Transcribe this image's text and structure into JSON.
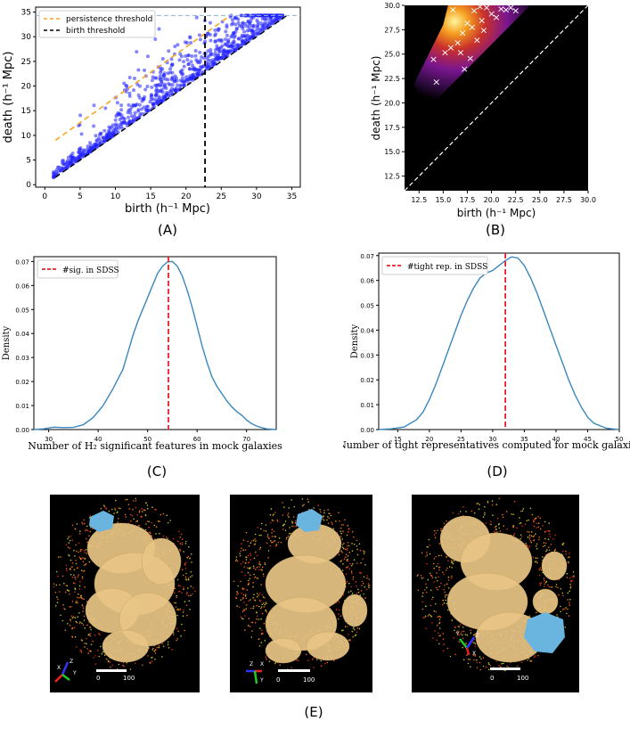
{
  "chart_data": [
    {
      "id": "A",
      "type": "scatter",
      "title": "",
      "xlabel": "birth (h⁻¹ Mpc)",
      "ylabel": "death (h⁻¹ Mpc)",
      "xlim": [
        0,
        35
      ],
      "ylim": [
        0,
        35
      ],
      "xticks": [
        "0",
        "5",
        "10",
        "15",
        "20",
        "25",
        "30",
        "35"
      ],
      "yticks": [
        "0",
        "5",
        "10",
        "15",
        "20",
        "25",
        "30",
        "35"
      ],
      "legend": [
        "persistence threshold",
        "birth threshold"
      ],
      "persistence_line": {
        "from": [
          1.5,
          9
        ],
        "to": [
          26,
          34
        ]
      },
      "birth_threshold": 22.7,
      "death_cap": 34.3,
      "colors": {
        "points": "#2222ff",
        "persistence": "#f5a623",
        "birth": "#000000",
        "cap": "#8ab4d8"
      }
    },
    {
      "id": "B",
      "type": "heatmap",
      "xlabel": "birth (h⁻¹ Mpc)",
      "ylabel": "death (h⁻¹ Mpc)",
      "xlim": [
        11,
        30
      ],
      "ylim": [
        11,
        30
      ],
      "xticks": [
        "12.5",
        "15.0",
        "17.5",
        "20.0",
        "22.5",
        "25.0",
        "27.5",
        "30.0"
      ],
      "yticks": [
        "12.5",
        "15.0",
        "17.5",
        "20.0",
        "22.5",
        "25.0",
        "27.5",
        "30.0"
      ],
      "markers": [
        [
          14,
          24.5
        ],
        [
          14.3,
          22.2
        ],
        [
          15.2,
          25.2
        ],
        [
          15.8,
          25.7
        ],
        [
          16.5,
          26.2
        ],
        [
          17,
          27.2
        ],
        [
          17.5,
          28.2
        ],
        [
          18,
          27.8
        ],
        [
          18.2,
          29.5
        ],
        [
          19,
          28.5
        ],
        [
          19.5,
          29.8
        ],
        [
          20,
          29.2
        ],
        [
          20.5,
          28.8
        ],
        [
          21,
          29.7
        ],
        [
          21.5,
          29.6
        ],
        [
          22,
          29.8
        ],
        [
          16.8,
          25.2
        ],
        [
          17.2,
          23.5
        ],
        [
          18.5,
          26.5
        ],
        [
          19.2,
          27.5
        ],
        [
          17.8,
          24.6
        ],
        [
          18.8,
          29.9
        ],
        [
          16,
          29.6
        ],
        [
          22.5,
          29.5
        ]
      ]
    },
    {
      "id": "C",
      "type": "line",
      "xlabel": "Number of H₂ significant features in mock galaxies",
      "ylabel": "Density",
      "xlim": [
        27,
        76
      ],
      "ylim": [
        0,
        0.072
      ],
      "xticks": [
        "30",
        "40",
        "50",
        "60",
        "70"
      ],
      "yticks": [
        "0.00",
        "0.01",
        "0.02",
        "0.03",
        "0.04",
        "0.05",
        "0.06",
        "0.07"
      ],
      "legend": [
        "#sig. in SDSS"
      ],
      "vline": 54.2,
      "x": [
        27,
        29,
        31,
        33,
        35,
        37,
        39,
        41,
        43,
        45,
        46,
        47,
        48,
        49,
        50,
        51,
        52,
        53,
        54,
        55,
        56,
        57,
        58,
        59,
        60,
        61,
        62,
        63,
        64,
        65,
        66,
        67,
        68,
        69,
        70,
        71,
        72,
        73,
        74,
        76
      ],
      "y": [
        0,
        0.0003,
        0.001,
        0.0008,
        0.0009,
        0.002,
        0.005,
        0.01,
        0.017,
        0.025,
        0.032,
        0.039,
        0.045,
        0.05,
        0.055,
        0.06,
        0.065,
        0.068,
        0.0698,
        0.07,
        0.068,
        0.064,
        0.058,
        0.051,
        0.043,
        0.035,
        0.028,
        0.022,
        0.018,
        0.015,
        0.012,
        0.0095,
        0.0075,
        0.006,
        0.004,
        0.0025,
        0.0015,
        0.0008,
        0.0003,
        0
      ]
    },
    {
      "id": "D",
      "type": "line",
      "xlabel": "Number of tight representatives computed for mock galaxies",
      "ylabel": "Density",
      "xlim": [
        12,
        50
      ],
      "ylim": [
        0,
        0.071
      ],
      "xticks": [
        "15",
        "20",
        "25",
        "30",
        "35",
        "40",
        "45",
        "50"
      ],
      "yticks": [
        "0.00",
        "0.01",
        "0.02",
        "0.03",
        "0.04",
        "0.05",
        "0.06",
        "0.07"
      ],
      "legend": [
        "#tight rep. in SDSS"
      ],
      "vline": 32,
      "x": [
        12,
        14,
        16,
        18,
        19,
        20,
        21,
        22,
        23,
        24,
        25,
        26,
        27,
        28,
        29,
        30,
        31,
        32,
        33,
        34,
        35,
        36,
        37,
        38,
        39,
        40,
        41,
        42,
        43,
        44,
        45,
        46,
        48,
        50
      ],
      "y": [
        0,
        0.0003,
        0.001,
        0.004,
        0.007,
        0.012,
        0.018,
        0.025,
        0.032,
        0.039,
        0.046,
        0.052,
        0.057,
        0.061,
        0.063,
        0.064,
        0.066,
        0.068,
        0.0695,
        0.069,
        0.066,
        0.061,
        0.055,
        0.048,
        0.041,
        0.034,
        0.027,
        0.02,
        0.014,
        0.009,
        0.005,
        0.0025,
        0.0005,
        0
      ]
    }
  ],
  "panel_labels": {
    "a": "(A)",
    "b": "(B)",
    "c": "(C)",
    "d": "(D)",
    "e": "(E)"
  },
  "renders": [
    {
      "axes": [
        "X",
        "Z",
        "Y"
      ],
      "scale_start": "0",
      "scale_end": "100"
    },
    {
      "axes": [
        "Z",
        "X",
        "Y"
      ],
      "scale_start": "0",
      "scale_end": "100"
    },
    {
      "axes": [
        "Y",
        "Z",
        "X"
      ],
      "scale_start": "0",
      "scale_end": "100"
    }
  ]
}
